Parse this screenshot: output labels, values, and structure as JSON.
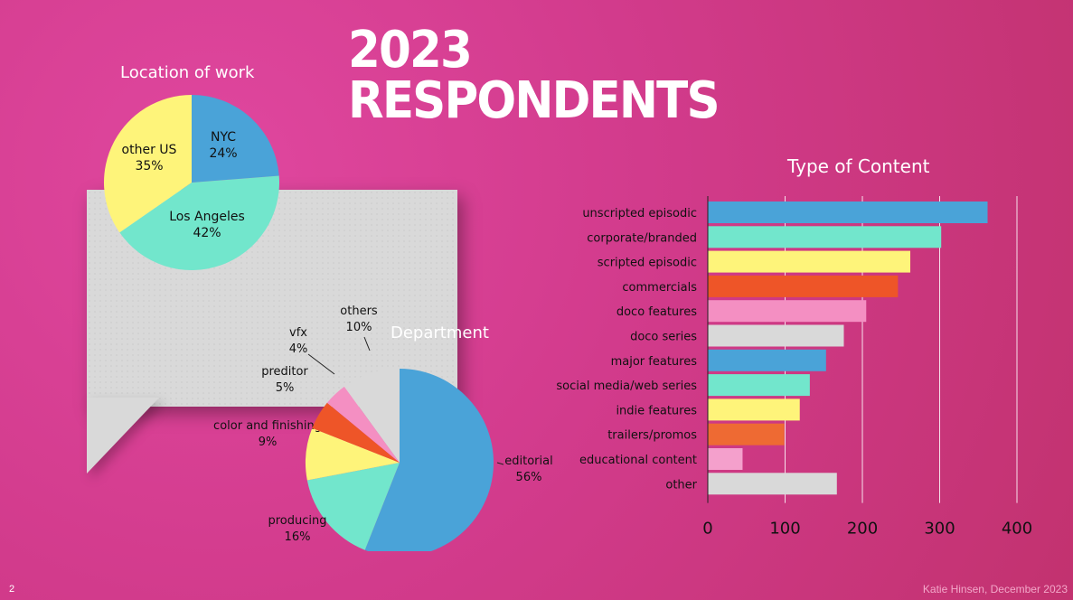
{
  "page": {
    "title": "2023 RESPONDENTS",
    "page_number": "2",
    "credit": "Katie Hinsen, December 2023"
  },
  "chart_data": [
    {
      "id": "location",
      "type": "pie",
      "title": "Location of work",
      "slices": [
        {
          "label": "NYC",
          "value": 24,
          "pct": "24%",
          "color": "#4aa3d8"
        },
        {
          "label": "Los Angeles",
          "value": 42,
          "pct": "42%",
          "color": "#72e6cc"
        },
        {
          "label": "other US",
          "value": 35,
          "pct": "35%",
          "color": "#fef47a"
        }
      ]
    },
    {
      "id": "department",
      "type": "pie",
      "title": "Department",
      "slices": [
        {
          "label": "editorial",
          "value": 56,
          "pct": "56%",
          "color": "#4aa3d8"
        },
        {
          "label": "producing",
          "value": 16,
          "pct": "16%",
          "color": "#72e6cc"
        },
        {
          "label": "color and finishing",
          "value": 9,
          "pct": "9%",
          "color": "#fef47a"
        },
        {
          "label": "preditor",
          "value": 5,
          "pct": "5%",
          "color": "#ee5528"
        },
        {
          "label": "vfx",
          "value": 4,
          "pct": "4%",
          "color": "#f48fc2"
        },
        {
          "label": "others",
          "value": 10,
          "pct": "10%",
          "color": "#d9d9d9"
        }
      ]
    },
    {
      "id": "content",
      "type": "bar",
      "orientation": "horizontal",
      "title": "Type of Content",
      "categories": [
        "unscripted episodic",
        "corporate/branded",
        "scripted episodic",
        "commercials",
        "doco features",
        "doco series",
        "major features",
        "social media/web series",
        "indie features",
        "trailers/promos",
        "educational content",
        "other"
      ],
      "values": [
        362,
        302,
        262,
        246,
        205,
        176,
        153,
        132,
        119,
        99,
        45,
        167
      ],
      "colors": [
        "#4aa3d8",
        "#72e6cc",
        "#fef47a",
        "#ee5528",
        "#f48fc2",
        "#d9d9d9",
        "#4aa3d8",
        "#72e6cc",
        "#fef47a",
        "#ee6a33",
        "#f4a0cc",
        "#d9d9d9"
      ],
      "xlim": [
        0,
        400
      ],
      "xticks": [
        "0",
        "100",
        "200",
        "300",
        "400"
      ],
      "grid": true
    }
  ]
}
